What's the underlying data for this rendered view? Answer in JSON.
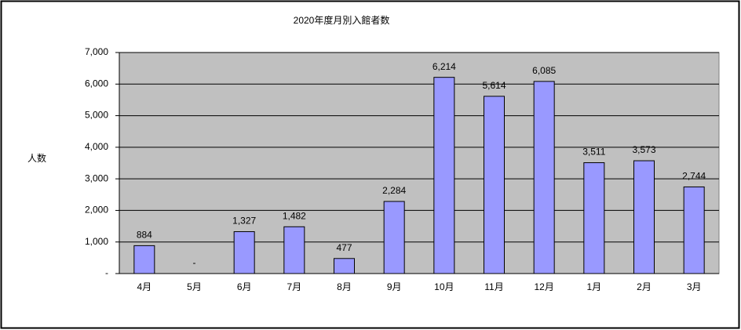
{
  "chart_data": {
    "type": "bar",
    "title": "2020年度月別入館者数",
    "y_label": "人数",
    "categories": [
      "4月",
      "5月",
      "6月",
      "7月",
      "8月",
      "9月",
      "10月",
      "11月",
      "12月",
      "1月",
      "2月",
      "3月"
    ],
    "values": [
      884,
      0,
      1327,
      1482,
      477,
      2284,
      6214,
      5614,
      6085,
      3511,
      3573,
      2744
    ],
    "value_labels": [
      "884",
      "-",
      "1,327",
      "1,482",
      "477",
      "2,284",
      "6,214",
      "5,614",
      "6,085",
      "3,511",
      "3,573",
      "2,744"
    ],
    "color": "#9999ff",
    "ylim": [
      0,
      7000
    ],
    "yticks": [
      {
        "value": 0,
        "label": "-"
      },
      {
        "value": 1000,
        "label": "1,000"
      },
      {
        "value": 2000,
        "label": "2,000"
      },
      {
        "value": 3000,
        "label": "3,000"
      },
      {
        "value": 4000,
        "label": "4,000"
      },
      {
        "value": 5000,
        "label": "5,000"
      },
      {
        "value": 6000,
        "label": "6,000"
      },
      {
        "value": 7000,
        "label": "7,000"
      }
    ],
    "grid": true
  }
}
